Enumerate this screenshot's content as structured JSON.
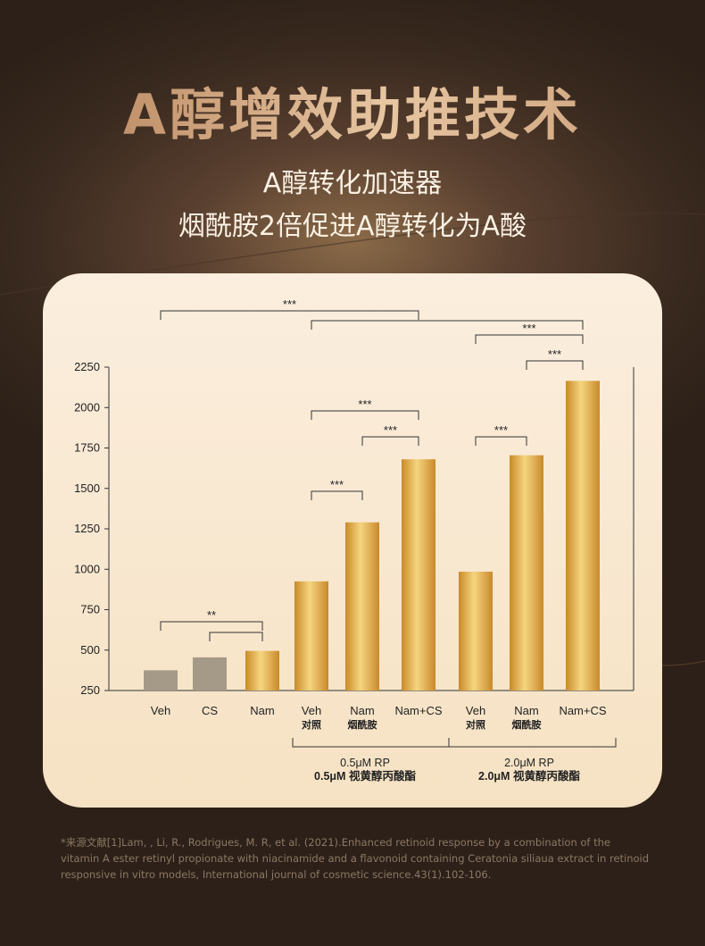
{
  "page": {
    "title": "A醇增效助推技术",
    "subtitle_line1": "A醇转化加速器",
    "subtitle_line2": "烟酰胺2倍促进A醇转化为A酸",
    "footnote": "*来源文献[1]Lam, , Li, R., Rodrigues, M. R, et al. (2021).Enhanced retinoid response by a combination of the vitamin A ester retinyl propionate with niacinamide and a flavonoid containing Ceratonia siliaua extract in retinoid responsive in vitro models, International journal of cosmetic science.43(1).102-106."
  },
  "chart_data": {
    "type": "bar",
    "ylim": [
      250,
      2250
    ],
    "yticks": [
      250,
      500,
      750,
      1000,
      1250,
      1500,
      1750,
      2000,
      2250
    ],
    "categories": [
      "Veh",
      "CS",
      "Nam",
      "Veh",
      "Nam",
      "Nam+CS",
      "Veh",
      "Nam",
      "Nam+CS"
    ],
    "sublabels": [
      "",
      "",
      "",
      "对照",
      "烟酰胺",
      "",
      "对照",
      "烟酰胺",
      ""
    ],
    "values": [
      375,
      455,
      495,
      925,
      1290,
      1680,
      985,
      1705,
      2165
    ],
    "bar_colors": [
      "#a59a88",
      "#a59a88",
      "#d8a13c",
      "#d8a13c",
      "#d8a13c",
      "#d8a13c",
      "#d8a13c",
      "#d8a13c",
      "#d8a13c"
    ],
    "groups": [
      {
        "label1": "0.5μM RP",
        "label2": "0.5μM 视黄醇丙酸酯",
        "from": 3,
        "to": 5
      },
      {
        "label1": "2.0μM RP",
        "label2": "2.0μM 视黄醇丙酸酯",
        "from": 6,
        "to": 8
      }
    ],
    "significance": [
      {
        "a": 0,
        "b": 2,
        "level": 2,
        "label": "**"
      },
      {
        "a": 1,
        "b": 2,
        "level": 1,
        "label": ""
      },
      {
        "a": 3,
        "b": 4,
        "level": 1,
        "label": "***"
      },
      {
        "a": 4,
        "b": 5,
        "level": 1,
        "label": "***"
      },
      {
        "a": 3,
        "b": 5,
        "level": 2,
        "label": "***"
      },
      {
        "a": 6,
        "b": 7,
        "level": 1,
        "label": "***"
      },
      {
        "a": 7,
        "b": 8,
        "level": 1,
        "label": "***"
      },
      {
        "a": 6,
        "b": 8,
        "level": 2,
        "label": "***"
      },
      {
        "a": 0,
        "b": 5,
        "level": 4,
        "label": "***"
      },
      {
        "a": 3,
        "b": 8,
        "level": 3,
        "label": ""
      }
    ],
    "accent_color": "#d8a13c",
    "gray_color": "#a59a88"
  }
}
